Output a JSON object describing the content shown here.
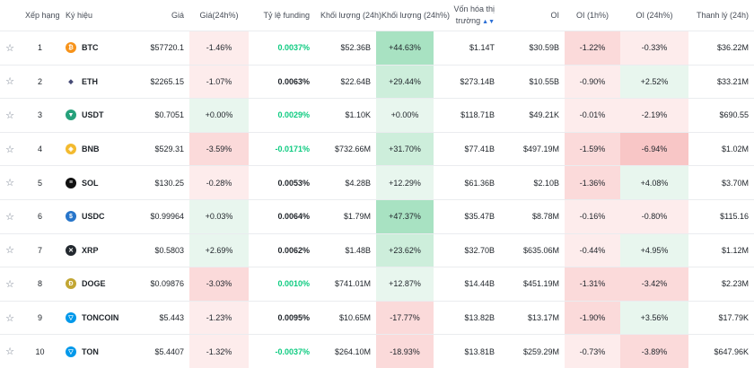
{
  "headers": {
    "rank": "Xếp hạng",
    "symbol": "Ký hiệu",
    "price": "Giá",
    "change24h": "Giá(24h%)",
    "funding": "Tỷ lệ funding",
    "volume": "Khối lượng (24h)",
    "volume_change": "Khối lượng (24h%)",
    "mcap": "Vốn hóa thị trường",
    "oi": "OI",
    "oi1h": "OI (1h%)",
    "oi24h": "OI (24h%)",
    "liq": "Thanh lý (24h)"
  },
  "icons": {
    "star": "star-outline-icon",
    "sort": "sort-arrows-icon"
  },
  "rows": [
    {
      "rank": "1",
      "symbol": "BTC",
      "icon_bg": "#f7931a",
      "icon_glyph": "₿",
      "price": "$57720.1",
      "change": "-1.46%",
      "change_tone": "neg",
      "funding": "0.0037%",
      "funding_tone": "green",
      "volume": "$52.36B",
      "vol_change": "+44.63%",
      "vol_tone": "pos-s",
      "mcap": "$1.14T",
      "oi": "$30.59B",
      "oi1h": "-1.22%",
      "oi1h_tone": "neg-m",
      "oi24h": "-0.33%",
      "oi24h_tone": "neg",
      "liq": "$36.22M"
    },
    {
      "rank": "2",
      "symbol": "ETH",
      "icon_bg": "#ffffff",
      "icon_glyph": "◆",
      "price": "$2265.15",
      "change": "-1.07%",
      "change_tone": "neg",
      "funding": "0.0063%",
      "funding_tone": "dark",
      "volume": "$22.64B",
      "vol_change": "+29.44%",
      "vol_tone": "pos-m",
      "mcap": "$273.14B",
      "oi": "$10.55B",
      "oi1h": "-0.90%",
      "oi1h_tone": "neg",
      "oi24h": "+2.52%",
      "oi24h_tone": "pos",
      "liq": "$33.21M"
    },
    {
      "rank": "3",
      "symbol": "USDT",
      "icon_bg": "#26a17b",
      "icon_glyph": "▼",
      "price": "$0.7051",
      "change": "+0.00%",
      "change_tone": "pos",
      "funding": "0.0029%",
      "funding_tone": "green",
      "volume": "$1.10K",
      "vol_change": "+0.00%",
      "vol_tone": "pos",
      "mcap": "$118.71B",
      "oi": "$49.21K",
      "oi1h": "-0.01%",
      "oi1h_tone": "neg",
      "oi24h": "-2.19%",
      "oi24h_tone": "neg",
      "liq": "$690.55"
    },
    {
      "rank": "4",
      "symbol": "BNB",
      "icon_bg": "#f3ba2f",
      "icon_glyph": "◈",
      "price": "$529.31",
      "change": "-3.59%",
      "change_tone": "neg-m",
      "funding": "-0.0171%",
      "funding_tone": "green",
      "volume": "$732.66M",
      "vol_change": "+31.70%",
      "vol_tone": "pos-m",
      "mcap": "$77.41B",
      "oi": "$497.19M",
      "oi1h": "-1.59%",
      "oi1h_tone": "neg-m",
      "oi24h": "-6.94%",
      "oi24h_tone": "neg-s",
      "liq": "$1.02M"
    },
    {
      "rank": "5",
      "symbol": "SOL",
      "icon_bg": "#111111",
      "icon_glyph": "≡",
      "price": "$130.25",
      "change": "-0.28%",
      "change_tone": "neg",
      "funding": "0.0053%",
      "funding_tone": "dark",
      "volume": "$4.28B",
      "vol_change": "+12.29%",
      "vol_tone": "pos",
      "mcap": "$61.36B",
      "oi": "$2.10B",
      "oi1h": "-1.36%",
      "oi1h_tone": "neg-m",
      "oi24h": "+4.08%",
      "oi24h_tone": "pos",
      "liq": "$3.70M"
    },
    {
      "rank": "6",
      "symbol": "USDC",
      "icon_bg": "#2775ca",
      "icon_glyph": "$",
      "price": "$0.99964",
      "change": "+0.03%",
      "change_tone": "pos",
      "funding": "0.0064%",
      "funding_tone": "dark",
      "volume": "$1.79M",
      "vol_change": "+47.37%",
      "vol_tone": "pos-s",
      "mcap": "$35.47B",
      "oi": "$8.78M",
      "oi1h": "-0.16%",
      "oi1h_tone": "neg",
      "oi24h": "-0.80%",
      "oi24h_tone": "neg",
      "liq": "$115.16"
    },
    {
      "rank": "7",
      "symbol": "XRP",
      "icon_bg": "#23292f",
      "icon_glyph": "✕",
      "price": "$0.5803",
      "change": "+2.69%",
      "change_tone": "pos",
      "funding": "0.0062%",
      "funding_tone": "dark",
      "volume": "$1.48B",
      "vol_change": "+23.62%",
      "vol_tone": "pos-m",
      "mcap": "$32.70B",
      "oi": "$635.06M",
      "oi1h": "-0.44%",
      "oi1h_tone": "neg",
      "oi24h": "+4.95%",
      "oi24h_tone": "pos",
      "liq": "$1.12M"
    },
    {
      "rank": "8",
      "symbol": "DOGE",
      "icon_bg": "#c2a633",
      "icon_glyph": "Ð",
      "price": "$0.09876",
      "change": "-3.03%",
      "change_tone": "neg-m",
      "funding": "0.0010%",
      "funding_tone": "green",
      "volume": "$741.01M",
      "vol_change": "+12.87%",
      "vol_tone": "pos",
      "mcap": "$14.44B",
      "oi": "$451.19M",
      "oi1h": "-1.31%",
      "oi1h_tone": "neg-m",
      "oi24h": "-3.42%",
      "oi24h_tone": "neg-m",
      "liq": "$2.23M"
    },
    {
      "rank": "9",
      "symbol": "TONCOIN",
      "icon_bg": "#0098ea",
      "icon_glyph": "▽",
      "price": "$5.443",
      "change": "-1.23%",
      "change_tone": "neg",
      "funding": "0.0095%",
      "funding_tone": "dark",
      "volume": "$10.65M",
      "vol_change": "-17.77%",
      "vol_tone": "neg-m",
      "mcap": "$13.82B",
      "oi": "$13.17M",
      "oi1h": "-1.90%",
      "oi1h_tone": "neg-m",
      "oi24h": "+3.56%",
      "oi24h_tone": "pos",
      "liq": "$17.79K"
    },
    {
      "rank": "10",
      "symbol": "TON",
      "icon_bg": "#0098ea",
      "icon_glyph": "▽",
      "price": "$5.4407",
      "change": "-1.32%",
      "change_tone": "neg",
      "funding": "-0.0037%",
      "funding_tone": "green",
      "volume": "$264.10M",
      "vol_change": "-18.93%",
      "vol_tone": "neg-m",
      "mcap": "$13.81B",
      "oi": "$259.29M",
      "oi1h": "-0.73%",
      "oi1h_tone": "neg",
      "oi24h": "-3.89%",
      "oi24h_tone": "neg-m",
      "liq": "$647.96K"
    }
  ]
}
